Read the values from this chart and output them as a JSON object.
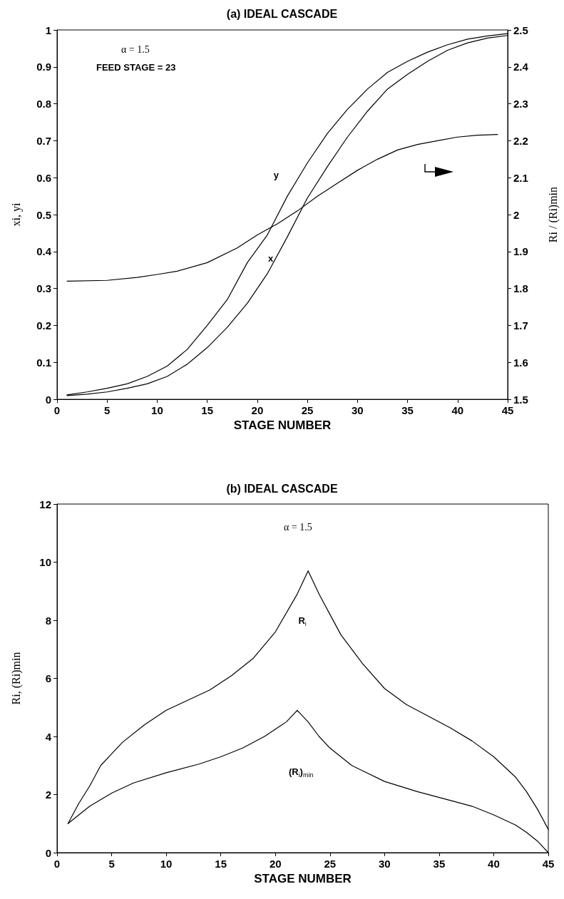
{
  "chart_data": [
    {
      "type": "line",
      "title": "(a) IDEAL CASCADE",
      "xlabel": "STAGE NUMBER",
      "ylabel": "xi, yi",
      "y2label": "Ri / (Ri)min",
      "annotations": [
        "α = 1.5",
        "FEED STAGE = 23"
      ],
      "xlim": [
        0,
        45
      ],
      "xticks": [
        0,
        5,
        10,
        15,
        20,
        25,
        30,
        35,
        40,
        45
      ],
      "ylim": [
        0,
        1
      ],
      "yticks": [
        0,
        0.1,
        0.2,
        0.3,
        0.4,
        0.5,
        0.6,
        0.7,
        0.8,
        0.9,
        1
      ],
      "y2lim": [
        1.5,
        2.5
      ],
      "y2ticks": [
        1.5,
        1.6,
        1.7,
        1.8,
        1.9,
        2,
        2.1,
        2.2,
        2.3,
        2.4,
        2.5
      ],
      "grid": false,
      "legend": false,
      "marker": "none",
      "line_style": "solid",
      "series": [
        {
          "name": "y",
          "color": "#000000",
          "x": [
            1,
            3,
            5,
            7,
            9,
            11,
            13,
            15,
            17,
            19,
            21,
            23,
            25,
            27,
            29,
            31,
            33,
            35,
            37,
            39,
            41,
            43,
            45
          ],
          "values": [
            0.012,
            0.02,
            0.03,
            0.042,
            0.062,
            0.09,
            0.135,
            0.2,
            0.27,
            0.37,
            0.445,
            0.55,
            0.64,
            0.72,
            0.785,
            0.84,
            0.885,
            0.915,
            0.94,
            0.96,
            0.975,
            0.984,
            0.99
          ]
        },
        {
          "name": "x",
          "color": "#000000",
          "x": [
            1,
            3,
            5,
            7,
            9,
            11,
            13,
            15,
            17,
            19,
            21,
            23,
            25,
            27,
            29,
            31,
            33,
            35,
            37,
            39,
            41,
            43,
            45
          ],
          "values": [
            0.01,
            0.014,
            0.02,
            0.03,
            0.042,
            0.062,
            0.095,
            0.14,
            0.195,
            0.26,
            0.34,
            0.44,
            0.545,
            0.63,
            0.71,
            0.78,
            0.84,
            0.88,
            0.915,
            0.945,
            0.965,
            0.978,
            0.985
          ]
        },
        {
          "color": "#000000",
          "axis": "y2",
          "x": [
            1,
            5,
            8,
            10,
            12,
            15,
            18,
            20,
            22,
            24,
            26,
            28,
            30,
            32,
            34,
            36,
            38,
            40,
            42,
            44
          ],
          "values": [
            1.82,
            1.822,
            1.83,
            1.838,
            1.847,
            1.87,
            1.91,
            1.945,
            1.975,
            2.01,
            2.05,
            2.085,
            2.12,
            2.15,
            2.175,
            2.19,
            2.2,
            2.21,
            2.215,
            2.217
          ]
        }
      ]
    },
    {
      "type": "line",
      "title": "(b) IDEAL CASCADE",
      "xlabel": "STAGE NUMBER",
      "ylabel": "Ri, (Ri)min",
      "annotations": [
        "α = 1.5"
      ],
      "xlim": [
        0,
        45
      ],
      "xticks": [
        0,
        5,
        10,
        15,
        20,
        25,
        30,
        35,
        40,
        45
      ],
      "ylim": [
        0,
        12
      ],
      "yticks": [
        0,
        2,
        4,
        6,
        8,
        10,
        12
      ],
      "grid": false,
      "legend": false,
      "marker": "none",
      "line_style": "solid",
      "series": [
        {
          "name": "R$_{i}$",
          "color": "#000000",
          "x": [
            1,
            2,
            3,
            4,
            5,
            6,
            8,
            10,
            12,
            14,
            16,
            18,
            20,
            22,
            23,
            24,
            25,
            26,
            28,
            30,
            32,
            34,
            36,
            38,
            40,
            42,
            43,
            44,
            45
          ],
          "values": [
            1.0,
            1.7,
            2.3,
            3.0,
            3.4,
            3.8,
            4.4,
            4.9,
            5.25,
            5.6,
            6.1,
            6.7,
            7.6,
            8.9,
            9.7,
            8.9,
            8.2,
            7.5,
            6.5,
            5.65,
            5.1,
            4.7,
            4.3,
            3.85,
            3.3,
            2.6,
            2.1,
            1.5,
            0.8
          ]
        },
        {
          "name": "(R$_{i}$)$_{min}$",
          "color": "#000000",
          "x": [
            1,
            2,
            3,
            5,
            7,
            10,
            13,
            15,
            17,
            19,
            21,
            22,
            23,
            24,
            25,
            27,
            30,
            33,
            36,
            38,
            40,
            42,
            43,
            44,
            45
          ],
          "values": [
            1.0,
            1.3,
            1.6,
            2.05,
            2.4,
            2.75,
            3.05,
            3.3,
            3.6,
            4.0,
            4.5,
            4.9,
            4.5,
            4.0,
            3.6,
            3.0,
            2.45,
            2.1,
            1.8,
            1.6,
            1.3,
            0.95,
            0.7,
            0.4,
            0.0
          ]
        }
      ]
    }
  ]
}
